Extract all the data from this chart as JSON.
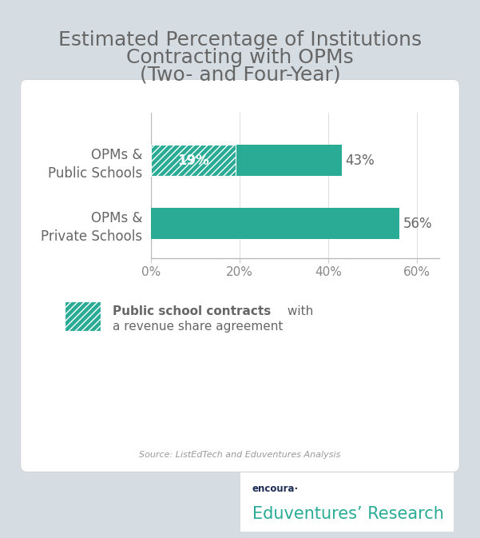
{
  "title_line1": "Estimated Percentage of Institutions",
  "title_line2": "Contracting with OPMs",
  "title_line3": "(Two- and Four-Year)",
  "title_fontsize": 18,
  "title_color": "#666666",
  "background_color": "#d5dde2",
  "chart_bg_color": "#ffffff",
  "teal_color": "#2aab96",
  "cat_public": "OPMs &\nPublic Schools",
  "cat_private": "OPMs &\nPrivate Schools",
  "val_public": 43,
  "val_private": 56,
  "hatch_value": 19,
  "label_public": "43%",
  "label_private": "56%",
  "label_hatch": "19%",
  "xlim_max": 65,
  "xticks": [
    0,
    20,
    40,
    60
  ],
  "xticklabels": [
    "0%",
    "20%",
    "40%",
    "60%"
  ],
  "legend_bold": "Public school contracts",
  "legend_rest": " with",
  "legend_line2": "a revenue share agreement",
  "source_text": "Source: ListEdTech and Eduventures Analysis",
  "footer_top": "encoura·",
  "footer_bottom": "Eduventures’ Research",
  "footer_teal": "#2aab96",
  "footer_navy": "#1e2d54",
  "label_fontsize": 12,
  "tick_fontsize": 11,
  "yticklabel_fontsize": 12
}
